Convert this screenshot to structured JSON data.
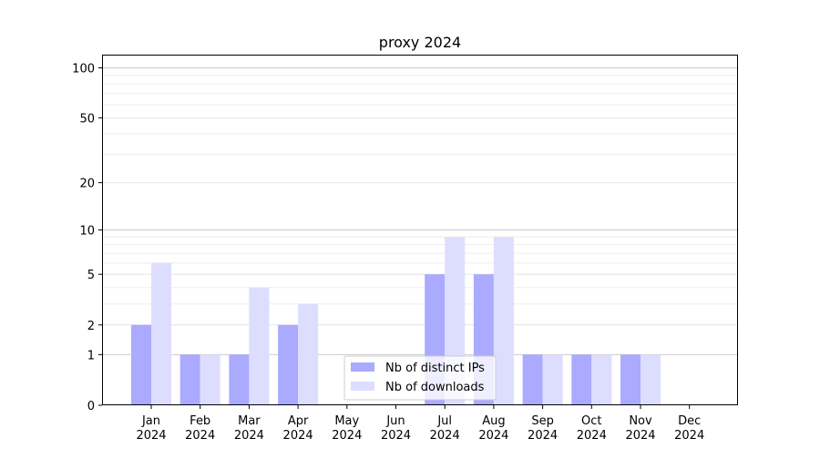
{
  "chart_data": {
    "type": "bar",
    "title": "proxy 2024",
    "xlabel": "",
    "ylabel": "",
    "yscale": "log(x+1)",
    "ylim": [
      0,
      120
    ],
    "y_ticks": [
      0,
      1,
      2,
      5,
      10,
      20,
      50,
      100
    ],
    "categories": [
      [
        "Jan",
        "2024"
      ],
      [
        "Feb",
        "2024"
      ],
      [
        "Mar",
        "2024"
      ],
      [
        "Apr",
        "2024"
      ],
      [
        "May",
        "2024"
      ],
      [
        "Jun",
        "2024"
      ],
      [
        "Jul",
        "2024"
      ],
      [
        "Aug",
        "2024"
      ],
      [
        "Sep",
        "2024"
      ],
      [
        "Oct",
        "2024"
      ],
      [
        "Nov",
        "2024"
      ],
      [
        "Dec",
        "2024"
      ]
    ],
    "series": [
      {
        "name": "Nb of distinct IPs",
        "color": "#aaaaff",
        "values": [
          2,
          1,
          1,
          2,
          0,
          0,
          5,
          5,
          1,
          1,
          1,
          0
        ]
      },
      {
        "name": "Nb of downloads",
        "color": "#ddddff",
        "values": [
          6,
          1,
          4,
          3,
          0,
          0,
          9,
          9,
          1,
          1,
          1,
          0
        ]
      }
    ],
    "legend_position": "bottom-center",
    "grid": "horizontal"
  }
}
